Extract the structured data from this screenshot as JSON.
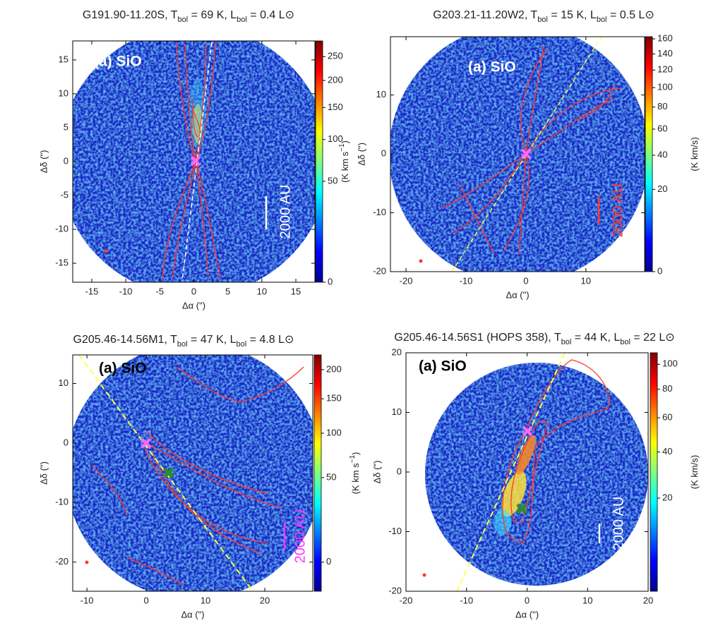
{
  "chart_data": [
    {
      "type": "image",
      "title": [
        "G191.90-11.20S, T",
        "bol",
        " = 69 K, L",
        "bol",
        " = 0.4 L⊙"
      ],
      "annotation": "(a) SiO",
      "scale_label": "2000 AU",
      "xlabel": "Δα (\")",
      "ylabel": "Δδ (\")",
      "xlim": [
        -17.8,
        17.8
      ],
      "xticks": [
        -15,
        -10,
        -5,
        0,
        5,
        10,
        15
      ],
      "ylim": [
        -17.8,
        17.8
      ],
      "yticks": [
        -15,
        -10,
        -5,
        0,
        5,
        10,
        15
      ],
      "colorbar_label": [
        "(K km s",
        "−1",
        ")"
      ],
      "clim": [
        0,
        286
      ],
      "cticks": [
        0,
        50,
        100,
        150,
        200,
        250
      ],
      "stretch": "sqrt"
    },
    {
      "type": "image",
      "title": [
        "G203.21-11.20W2, T",
        "bol",
        " = 15 K, L",
        "bol",
        " = 0.5 L⊙"
      ],
      "annotation": "(a) SiO",
      "scale_label": "2000 AU",
      "xlabel": "Δα (\")",
      "ylabel": "Δδ (\")",
      "xlim": [
        -22.6,
        19.8
      ],
      "xticks": [
        -20,
        -10,
        0,
        10
      ],
      "ylim": [
        -20,
        19.9
      ],
      "yticks": [
        -20,
        -10,
        0,
        10
      ],
      "colorbar_label": [
        "(K km/s)"
      ],
      "clim": [
        0,
        163
      ],
      "cticks": [
        0,
        20,
        40,
        60,
        80,
        100,
        120,
        140,
        160
      ],
      "stretch": "sqrt"
    },
    {
      "type": "image",
      "title": [
        "G205.46-14.56M1, T",
        "bol",
        " = 47 K, L",
        "bol",
        " = 4.8 L⊙"
      ],
      "annotation": "(a) SiO",
      "scale_label": "2000 AU",
      "xlabel": "Δα (\")",
      "ylabel": "Δδ (\")",
      "xlim": [
        -12.4,
        28.1
      ],
      "xticks": [
        -10,
        0,
        10,
        20
      ],
      "ylim": [
        -24.9,
        14.8
      ],
      "yticks": [
        -20,
        -10,
        0,
        10
      ],
      "colorbar_label": [
        "(K km s",
        "−1",
        ")"
      ],
      "clim": [
        -3.5,
        228
      ],
      "cticks": [
        0,
        50,
        100,
        150,
        200
      ],
      "stretch": "sqrt"
    },
    {
      "type": "image",
      "title": [
        "G205.46-14.56S1 (HOPS 358), T",
        "bol",
        " = 44 K, L",
        "bol",
        " = 22 L⊙"
      ],
      "annotation": "(a) SiO",
      "scale_label": "2000 AU",
      "xlabel": "Δα (\")",
      "ylabel": "Δδ (\")",
      "xlim": [
        -20,
        20
      ],
      "xticks": [
        -20,
        -10,
        0,
        10,
        20
      ],
      "ylim": [
        -20,
        20
      ],
      "yticks": [
        -20,
        -10,
        0,
        10,
        20
      ],
      "colorbar_label": [
        "(K km/s)"
      ],
      "clim": [
        3.8,
        110
      ],
      "cticks": [
        20,
        40,
        60,
        80,
        100
      ],
      "stretch": "sqrt"
    }
  ]
}
